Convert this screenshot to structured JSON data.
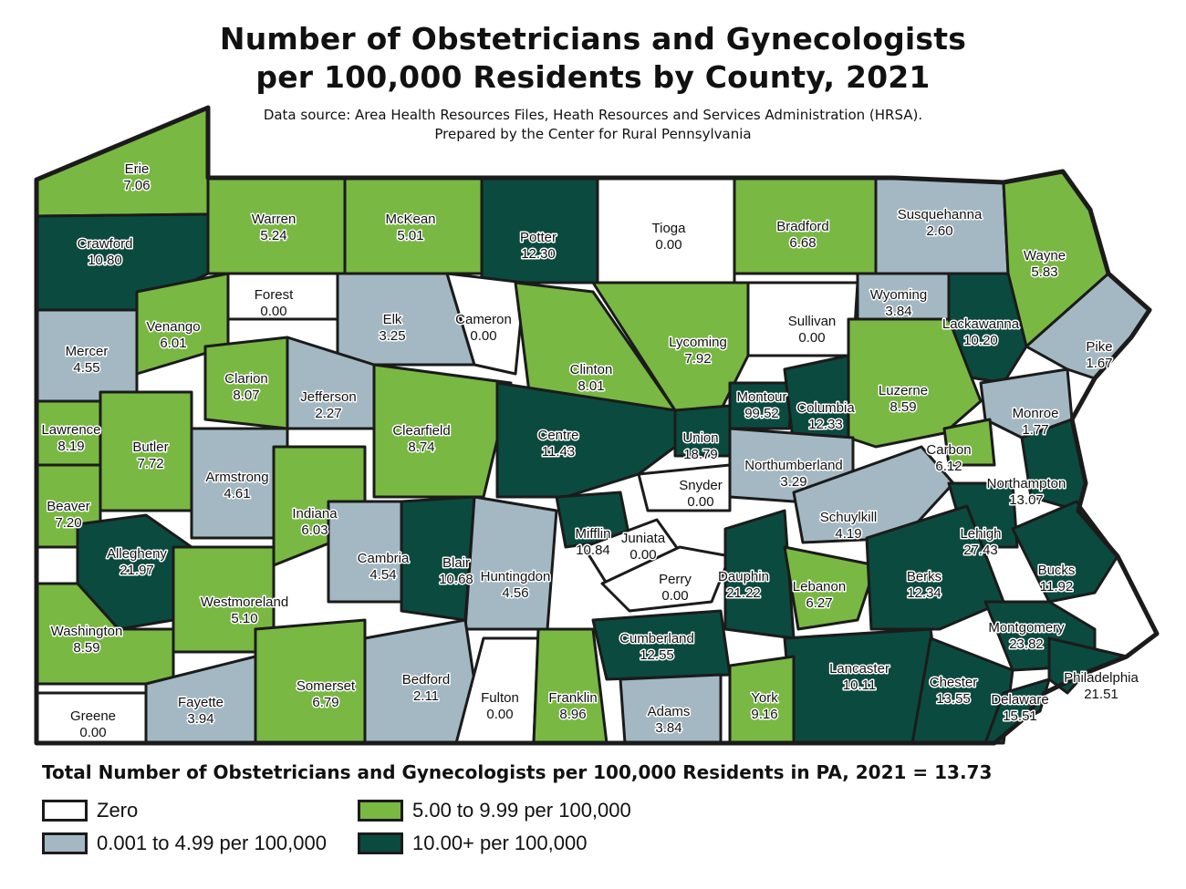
{
  "title_line1": "Number of Obstetricians and Gynecologists",
  "title_line2": "per 100,000 Residents by County, 2021",
  "subtitle_line1": "Data source: Area Health Resources Files, Heath Resources and Services Administration (HRSA).",
  "subtitle_line2": "Prepared by the Center for Rural Pennsylvania",
  "total_text": "Total Number of Obstetricians and Gynecologists per 100,000 Residents in PA, 2021 = 13.73",
  "colors": {
    "zero": "#ffffff",
    "low": "#a3b8c2",
    "mid": "#79b842",
    "high": "#0b4a3f",
    "border": "#1b1b1b"
  },
  "legend": [
    {
      "label": "Zero",
      "category": "zero"
    },
    {
      "label": "5.00 to 9.99 per 100,000",
      "category": "mid"
    },
    {
      "label": "0.001 to 4.99 per 100,000",
      "category": "low"
    },
    {
      "label": "10.00+ per 100,000",
      "category": "high"
    }
  ],
  "counties": [
    {
      "name": "Erie",
      "value": "7.06",
      "category": "mid"
    },
    {
      "name": "Crawford",
      "value": "10.80",
      "category": "high"
    },
    {
      "name": "Warren",
      "value": "5.24",
      "category": "mid"
    },
    {
      "name": "McKean",
      "value": "5.01",
      "category": "mid"
    },
    {
      "name": "Potter",
      "value": "12.30",
      "category": "high"
    },
    {
      "name": "Tioga",
      "value": "0.00",
      "category": "zero"
    },
    {
      "name": "Bradford",
      "value": "6.68",
      "category": "mid"
    },
    {
      "name": "Susquehanna",
      "value": "2.60",
      "category": "low"
    },
    {
      "name": "Wayne",
      "value": "5.83",
      "category": "mid"
    },
    {
      "name": "Forest",
      "value": "0.00",
      "category": "zero"
    },
    {
      "name": "Elk",
      "value": "3.25",
      "category": "low"
    },
    {
      "name": "Cameron",
      "value": "0.00",
      "category": "zero"
    },
    {
      "name": "Sullivan",
      "value": "0.00",
      "category": "zero"
    },
    {
      "name": "Wyoming",
      "value": "3.84",
      "category": "low"
    },
    {
      "name": "Lackawanna",
      "value": "10.20",
      "category": "high"
    },
    {
      "name": "Pike",
      "value": "1.67",
      "category": "low"
    },
    {
      "name": "Mercer",
      "value": "4.55",
      "category": "low"
    },
    {
      "name": "Venango",
      "value": "6.01",
      "category": "mid"
    },
    {
      "name": "Clarion",
      "value": "8.07",
      "category": "mid"
    },
    {
      "name": "Jefferson",
      "value": "2.27",
      "category": "low"
    },
    {
      "name": "Clinton",
      "value": "8.01",
      "category": "mid"
    },
    {
      "name": "Lycoming",
      "value": "7.92",
      "category": "mid"
    },
    {
      "name": "Montour",
      "value": "99.52",
      "category": "high"
    },
    {
      "name": "Columbia",
      "value": "12.33",
      "category": "high"
    },
    {
      "name": "Luzerne",
      "value": "8.59",
      "category": "mid"
    },
    {
      "name": "Monroe",
      "value": "1.77",
      "category": "low"
    },
    {
      "name": "Lawrence",
      "value": "8.19",
      "category": "mid"
    },
    {
      "name": "Butler",
      "value": "7.72",
      "category": "mid"
    },
    {
      "name": "Armstrong",
      "value": "4.61",
      "category": "low"
    },
    {
      "name": "Clearfield",
      "value": "8.74",
      "category": "mid"
    },
    {
      "name": "Centre",
      "value": "11.43",
      "category": "high"
    },
    {
      "name": "Union",
      "value": "18.79",
      "category": "high"
    },
    {
      "name": "Northumberland",
      "value": "3.29",
      "category": "low"
    },
    {
      "name": "Carbon",
      "value": "6.12",
      "category": "mid"
    },
    {
      "name": "Snyder",
      "value": "0.00",
      "category": "zero"
    },
    {
      "name": "Northampton",
      "value": "13.07",
      "category": "high"
    },
    {
      "name": "Beaver",
      "value": "7.20",
      "category": "mid"
    },
    {
      "name": "Indiana",
      "value": "6.03",
      "category": "mid"
    },
    {
      "name": "Schuylkill",
      "value": "4.19",
      "category": "low"
    },
    {
      "name": "Lehigh",
      "value": "27.43",
      "category": "high"
    },
    {
      "name": "Allegheny",
      "value": "21.97",
      "category": "high"
    },
    {
      "name": "Cambria",
      "value": "4.54",
      "category": "low"
    },
    {
      "name": "Blair",
      "value": "10.68",
      "category": "high"
    },
    {
      "name": "Huntingdon",
      "value": "4.56",
      "category": "low"
    },
    {
      "name": "Mifflin",
      "value": "10.84",
      "category": "high"
    },
    {
      "name": "Juniata",
      "value": "0.00",
      "category": "zero"
    },
    {
      "name": "Perry",
      "value": "0.00",
      "category": "zero"
    },
    {
      "name": "Dauphin",
      "value": "21.22",
      "category": "high"
    },
    {
      "name": "Lebanon",
      "value": "6.27",
      "category": "mid"
    },
    {
      "name": "Berks",
      "value": "12.34",
      "category": "high"
    },
    {
      "name": "Bucks",
      "value": "11.92",
      "category": "high"
    },
    {
      "name": "Westmoreland",
      "value": "5.10",
      "category": "mid"
    },
    {
      "name": "Washington",
      "value": "8.59",
      "category": "mid"
    },
    {
      "name": "Cumberland",
      "value": "12.55",
      "category": "high"
    },
    {
      "name": "Montgomery",
      "value": "23.82",
      "category": "high"
    },
    {
      "name": "Bedford",
      "value": "2.11",
      "category": "low"
    },
    {
      "name": "Somerset",
      "value": "6.79",
      "category": "mid"
    },
    {
      "name": "Lancaster",
      "value": "10.11",
      "category": "high"
    },
    {
      "name": "Chester",
      "value": "13.55",
      "category": "high"
    },
    {
      "name": "Philadelphia",
      "value": "21.51",
      "category": "high"
    },
    {
      "name": "Fayette",
      "value": "3.94",
      "category": "low"
    },
    {
      "name": "Fulton",
      "value": "0.00",
      "category": "zero"
    },
    {
      "name": "Franklin",
      "value": "8.96",
      "category": "mid"
    },
    {
      "name": "Adams",
      "value": "3.84",
      "category": "low"
    },
    {
      "name": "York",
      "value": "9.16",
      "category": "mid"
    },
    {
      "name": "Delaware",
      "value": "15.51",
      "category": "high"
    },
    {
      "name": "Greene",
      "value": "0.00",
      "category": "zero"
    }
  ]
}
